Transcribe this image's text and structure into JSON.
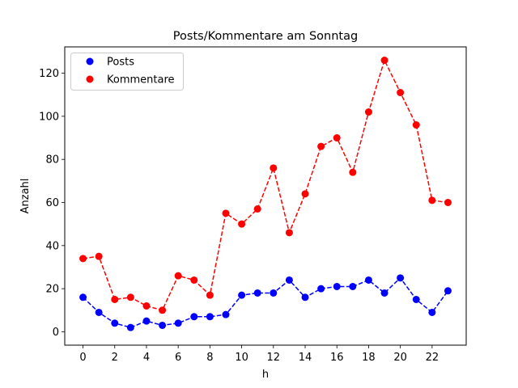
{
  "chart_data": {
    "type": "line",
    "title": "Posts/Kommentare am Sonntag",
    "xlabel": "h",
    "ylabel": "Anzahl",
    "x": [
      0,
      1,
      2,
      3,
      4,
      5,
      6,
      7,
      8,
      9,
      10,
      11,
      12,
      13,
      14,
      15,
      16,
      17,
      18,
      19,
      20,
      21,
      22,
      23
    ],
    "xlim": [
      -1.15,
      24.15
    ],
    "ylim": [
      -6.2,
      132.2
    ],
    "xticks": [
      "0",
      "2",
      "4",
      "6",
      "8",
      "10",
      "12",
      "14",
      "16",
      "18",
      "20",
      "22"
    ],
    "yticks": [
      "0",
      "20",
      "40",
      "60",
      "80",
      "100",
      "120"
    ],
    "grid": false,
    "legend_position": "top-left",
    "series": [
      {
        "name": "Posts",
        "color": "#0000ff",
        "line_style": "dashed",
        "marker": "circle",
        "values": [
          16,
          9,
          4,
          2,
          5,
          3,
          4,
          7,
          7,
          8,
          17,
          18,
          18,
          24,
          16,
          20,
          21,
          21,
          24,
          18,
          25,
          15,
          9,
          19
        ]
      },
      {
        "name": "Kommentare",
        "color": "#ff0000",
        "line_style": "dashed",
        "marker": "circle",
        "values": [
          34,
          35,
          15,
          16,
          12,
          10,
          26,
          24,
          17,
          55,
          50,
          57,
          76,
          46,
          64,
          86,
          90,
          74,
          102,
          126,
          111,
          96,
          61,
          60
        ]
      }
    ]
  }
}
